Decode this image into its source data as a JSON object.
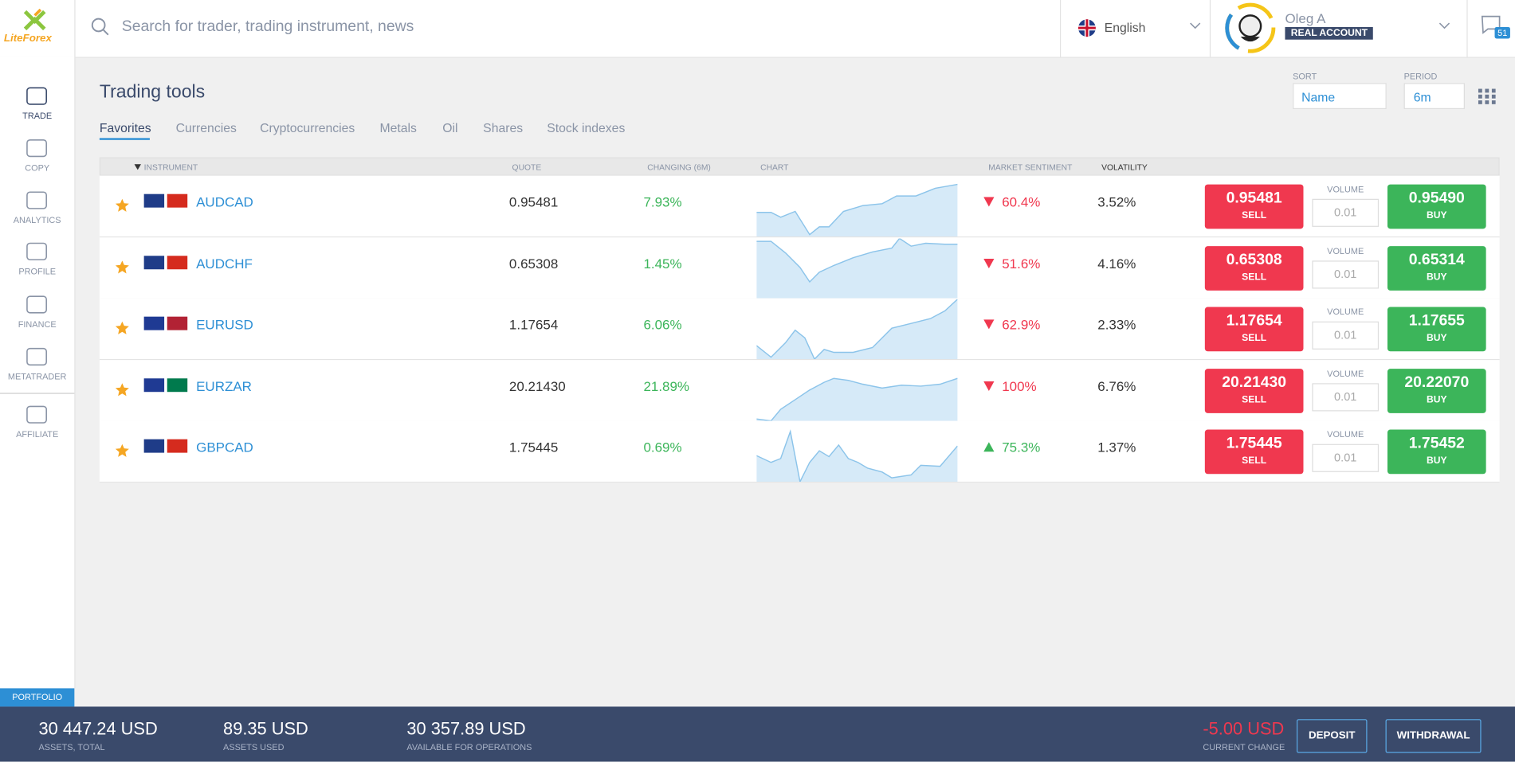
{
  "header": {
    "logo": "LiteForex",
    "search_placeholder": "Search for trader, trading instrument, news",
    "language": "English",
    "user_name": "Oleg A",
    "account_type": "REAL ACCOUNT",
    "notifications": "51"
  },
  "sidebar": {
    "items": [
      "TRADE",
      "COPY",
      "ANALYTICS",
      "PROFILE",
      "FINANCE",
      "METATRADER",
      "AFFILIATE"
    ],
    "portfolio": "PORTFOLIO"
  },
  "page": {
    "title": "Trading tools",
    "tabs": [
      "Favorites",
      "Currencies",
      "Cryptocurrencies",
      "Metals",
      "Oil",
      "Shares",
      "Stock indexes"
    ],
    "sort": {
      "label": "SORT",
      "value": "Name"
    },
    "period": {
      "label": "PERIOD",
      "value": "6m"
    }
  },
  "table": {
    "columns": [
      "INSTRUMENT",
      "QUOTE",
      "CHANGING (6M)",
      "CHART",
      "MARKET SENTIMENT",
      "VOLATILITY"
    ],
    "volume_label": "VOLUME",
    "sell_label": "SELL",
    "buy_label": "BUY",
    "rows": [
      {
        "instrument": "AUDCAD",
        "quote": "0.95481",
        "change": "7.93%",
        "sentiment": "60.4%",
        "direction": "down",
        "volatility": "3.52%",
        "sell": "0.95481",
        "volume": "0.01",
        "buy": "0.95490"
      },
      {
        "instrument": "AUDCHF",
        "quote": "0.65308",
        "change": "1.45%",
        "sentiment": "51.6%",
        "direction": "down",
        "volatility": "4.16%",
        "sell": "0.65308",
        "volume": "0.01",
        "buy": "0.65314"
      },
      {
        "instrument": "EURUSD",
        "quote": "1.17654",
        "change": "6.06%",
        "sentiment": "62.9%",
        "direction": "down",
        "volatility": "2.33%",
        "sell": "1.17654",
        "volume": "0.01",
        "buy": "1.17655"
      },
      {
        "instrument": "EURZAR",
        "quote": "20.21430",
        "change": "21.89%",
        "sentiment": "100%",
        "direction": "down",
        "volatility": "6.76%",
        "sell": "20.21430",
        "volume": "0.01",
        "buy": "20.22070"
      },
      {
        "instrument": "GBPCAD",
        "quote": "1.75445",
        "change": "0.69%",
        "sentiment": "75.3%",
        "direction": "up",
        "volatility": "1.37%",
        "sell": "1.75445",
        "volume": "0.01",
        "buy": "1.75452"
      }
    ]
  },
  "footer": {
    "stats": [
      {
        "value": "30 447.24 USD",
        "label": "ASSETS, TOTAL"
      },
      {
        "value": "89.35 USD",
        "label": "ASSETS USED"
      },
      {
        "value": "30 357.89 USD",
        "label": "AVAILABLE FOR OPERATIONS"
      }
    ],
    "current_change": {
      "value": "-5.00 USD",
      "label": "CURRENT CHANGE"
    },
    "buttons": [
      "DEPOSIT",
      "WITHDRAWAL"
    ]
  }
}
